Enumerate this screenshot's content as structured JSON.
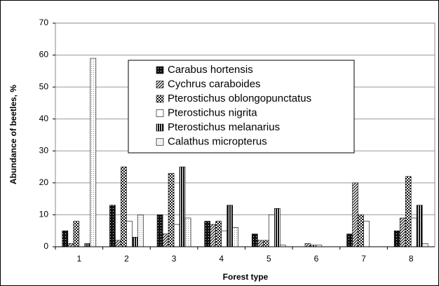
{
  "chart_data": {
    "type": "bar",
    "xlabel": "Forest type",
    "ylabel": "Abundance of beetles, %",
    "categories": [
      "1",
      "2",
      "3",
      "4",
      "5",
      "6",
      "7",
      "8"
    ],
    "series": [
      {
        "name": "Carabus hortensis",
        "color": "#111111",
        "pattern": "dark-dots",
        "values": [
          5,
          13,
          10,
          8,
          4,
          0,
          4,
          5
        ]
      },
      {
        "name": "Cychrus caraboides",
        "color": "#111111",
        "pattern": "diagonal",
        "values": [
          1,
          2,
          4,
          7,
          2,
          1,
          20,
          9
        ]
      },
      {
        "name": "Pterostichus oblongopunctatus",
        "color": "#111111",
        "pattern": "checker",
        "values": [
          8,
          25,
          23,
          8,
          2,
          0.5,
          10,
          22
        ]
      },
      {
        "name": "Pterostichus nigrita",
        "color": "#ffffff",
        "pattern": "solid",
        "values": [
          0,
          8,
          7,
          5,
          10,
          0.5,
          8,
          9
        ]
      },
      {
        "name": "Pterostichus melanarius",
        "color": "#111111",
        "pattern": "vertical",
        "values": [
          1,
          3,
          25,
          13,
          12,
          0,
          0,
          13
        ]
      },
      {
        "name": "Calathus micropterus",
        "color": "#888888",
        "pattern": "light-dots",
        "values": [
          59,
          10,
          9,
          6,
          0.5,
          0,
          0,
          1
        ]
      }
    ],
    "ylim": [
      0,
      70
    ],
    "yticks": [
      0,
      10,
      20,
      30,
      40,
      50,
      60,
      70
    ],
    "grid": true,
    "legend": "center"
  }
}
